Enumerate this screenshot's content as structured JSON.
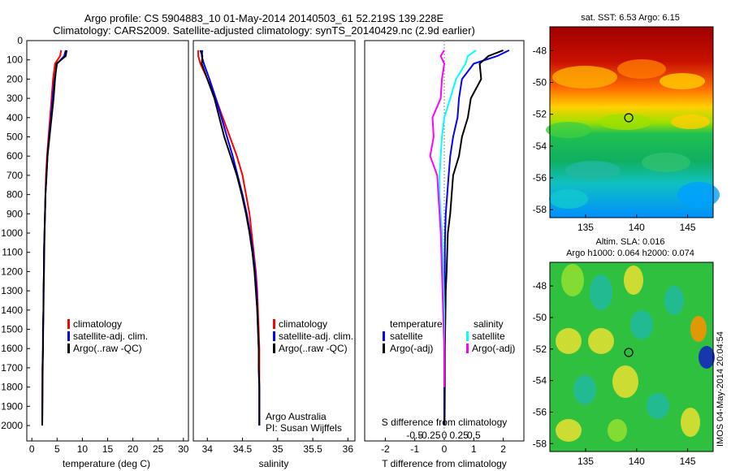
{
  "header": {
    "line1": "Argo profile: CS 5904883_10 01-May-2014 20140503_61 52.219S 139.228E",
    "line2": "Climatology: CARS2009. Satellite-adjusted climatology: synTS_20140429.nc (2.9d earlier)"
  },
  "colors": {
    "climatology": "#ff0000",
    "satellite": "#0000ff",
    "argo": "#000000",
    "salinity_satellite": "#00ffff",
    "salinity_argo": "#ff00ff"
  },
  "chart_data": [
    {
      "type": "line",
      "name": "temperature",
      "xlabel": "temperature (deg C)",
      "ylabel": "",
      "xlim": [
        -1,
        31
      ],
      "ylim": [
        2080,
        0
      ],
      "xticks": [
        0,
        5,
        10,
        15,
        20,
        25,
        30
      ],
      "yticks": [
        0,
        100,
        200,
        300,
        400,
        500,
        600,
        700,
        800,
        900,
        1000,
        1100,
        1200,
        1300,
        1400,
        1500,
        1600,
        1700,
        1800,
        1900,
        2000
      ],
      "legend": [
        "climatology",
        "satellite-adj. clim.",
        "Argo(..raw -QC)"
      ],
      "series": [
        {
          "name": "climatology",
          "color": "#ff0000",
          "x": [
            5.8,
            5.6,
            4.6,
            4.2,
            3.9,
            3.6,
            3.3,
            3.0,
            2.8,
            2.7,
            2.6,
            2.5,
            2.4,
            2.4,
            2.3,
            2.3,
            2.2,
            2.2,
            2.1,
            2.1,
            2.05
          ],
          "y": [
            50,
            80,
            120,
            200,
            300,
            400,
            500,
            600,
            700,
            800,
            900,
            1000,
            1100,
            1200,
            1300,
            1400,
            1500,
            1600,
            1700,
            1800,
            2000
          ]
        },
        {
          "name": "satellite-adj. clim.",
          "color": "#0000ff",
          "x": [
            6.7,
            6.4,
            5.0,
            4.5,
            4.1,
            3.8,
            3.4,
            3.1,
            2.9,
            2.7,
            2.6,
            2.5,
            2.4,
            2.4,
            2.3,
            2.3,
            2.2,
            2.2,
            2.1,
            2.1,
            2.05
          ],
          "y": [
            50,
            80,
            120,
            200,
            300,
            400,
            500,
            600,
            700,
            800,
            900,
            1000,
            1100,
            1200,
            1300,
            1400,
            1500,
            1600,
            1700,
            1800,
            2000
          ]
        },
        {
          "name": "Argo(..raw -QC)",
          "color": "#000000",
          "x": [
            6.9,
            6.7,
            4.9,
            4.6,
            4.3,
            3.9,
            3.5,
            3.1,
            2.9,
            2.7,
            2.6,
            2.5,
            2.45,
            2.4,
            2.35,
            2.3,
            2.25,
            2.2,
            2.15,
            2.1,
            2.05
          ],
          "y": [
            50,
            80,
            120,
            200,
            300,
            400,
            500,
            600,
            700,
            800,
            900,
            1000,
            1100,
            1200,
            1300,
            1400,
            1500,
            1600,
            1700,
            1800,
            2000
          ]
        }
      ]
    },
    {
      "type": "line",
      "name": "salinity",
      "xlabel": "salinity",
      "ylabel": "",
      "xlim": [
        33.8,
        36.1
      ],
      "ylim": [
        2080,
        0
      ],
      "xticks": [
        34,
        34.5,
        35,
        35.5,
        36
      ],
      "legend": [
        "climatology",
        "satellite-adj. clim.",
        "Argo(..raw -QC)"
      ],
      "annotation": [
        "Argo Australia",
        "PI: Susan Wijffels"
      ],
      "series": [
        {
          "name": "climatology",
          "color": "#ff0000",
          "x": [
            33.87,
            33.87,
            33.9,
            34.0,
            34.12,
            34.22,
            34.32,
            34.42,
            34.5,
            34.55,
            34.6,
            34.63,
            34.66,
            34.69,
            34.71,
            34.72,
            34.73,
            34.74,
            34.74,
            34.74,
            34.74
          ],
          "y": [
            50,
            80,
            120,
            200,
            300,
            400,
            500,
            600,
            700,
            800,
            900,
            1000,
            1100,
            1200,
            1300,
            1400,
            1500,
            1600,
            1700,
            1800,
            2000
          ]
        },
        {
          "name": "satellite-adj. clim.",
          "color": "#0000ff",
          "x": [
            33.93,
            33.92,
            33.95,
            34.03,
            34.12,
            34.2,
            34.28,
            34.36,
            34.43,
            34.5,
            34.56,
            34.61,
            34.65,
            34.68,
            34.7,
            34.71,
            34.72,
            34.73,
            34.73,
            34.74,
            34.74
          ],
          "y": [
            50,
            80,
            120,
            200,
            300,
            400,
            500,
            600,
            700,
            800,
            900,
            1000,
            1100,
            1200,
            1300,
            1400,
            1500,
            1600,
            1700,
            1800,
            2000
          ]
        },
        {
          "name": "Argo(..raw -QC)",
          "color": "#000000",
          "x": [
            33.9,
            33.93,
            33.92,
            34.0,
            34.1,
            34.17,
            34.24,
            34.33,
            34.42,
            34.49,
            34.55,
            34.6,
            34.64,
            34.67,
            34.69,
            34.71,
            34.72,
            34.73,
            34.73,
            34.74,
            34.74
          ],
          "y": [
            50,
            80,
            120,
            200,
            300,
            400,
            500,
            600,
            700,
            800,
            900,
            1000,
            1100,
            1200,
            1300,
            1400,
            1500,
            1600,
            1700,
            1800,
            2000
          ]
        }
      ]
    },
    {
      "type": "line",
      "name": "difference from climatology",
      "xlabel": "T difference from climatology",
      "xlabel_top": "S difference from climatology",
      "ylabel": "",
      "xlim": [
        -2.7,
        2.7
      ],
      "ylim": [
        2080,
        0
      ],
      "xticks_T": [
        -2,
        -1,
        0,
        1,
        2
      ],
      "xticks_S": [
        "-0.5",
        "-0.25",
        "0",
        "0.25",
        "0.5"
      ],
      "legend_titles": [
        "temperature",
        "salinity"
      ],
      "legend": [
        "satellite",
        "Argo(-adj)",
        "satellite",
        "Argo(-adj)"
      ],
      "series": [
        {
          "name": "temperature satellite",
          "color": "#0000ff",
          "x": [
            2.2,
            1.8,
            1.0,
            0.6,
            0.5,
            0.45,
            0.3,
            0.2,
            0.15,
            0.1,
            0.05,
            0.03,
            0.02,
            0.02,
            0.01,
            0.01,
            0.0,
            0.0,
            0.0,
            0.0
          ],
          "y": [
            50,
            80,
            120,
            200,
            300,
            400,
            500,
            600,
            700,
            800,
            900,
            1000,
            1100,
            1200,
            1400,
            1600,
            1700,
            1800,
            1900,
            2000
          ]
        },
        {
          "name": "temperature Argo(-adj)",
          "color": "#000000",
          "x": [
            2.0,
            1.5,
            1.2,
            1.25,
            0.9,
            0.8,
            0.6,
            0.5,
            0.3,
            0.25,
            0.2,
            0.12,
            0.1,
            0.08,
            0.05,
            0.04,
            0.03,
            0.02,
            0.02,
            0.01
          ],
          "y": [
            50,
            80,
            120,
            200,
            300,
            400,
            500,
            600,
            700,
            800,
            900,
            1000,
            1100,
            1200,
            1300,
            1400,
            1500,
            1600,
            1800,
            2000
          ]
        },
        {
          "name": "salinity satellite",
          "color": "#00ffff",
          "x": [
            0.27,
            0.2,
            0.18,
            0.1,
            0.05,
            0.0,
            -0.02,
            -0.03,
            -0.04,
            -0.04,
            -0.03,
            -0.02,
            -0.01,
            0.0,
            0.0,
            0.0
          ],
          "y": [
            50,
            80,
            120,
            200,
            300,
            400,
            500,
            600,
            700,
            800,
            900,
            1000,
            1200,
            1400,
            1600,
            1800
          ]
        },
        {
          "name": "salinity Argo(-adj)",
          "color": "#ff00ff",
          "x": [
            0.0,
            -0.03,
            0.0,
            -0.02,
            -0.03,
            -0.1,
            -0.09,
            -0.12,
            -0.06,
            -0.05,
            -0.04,
            -0.03,
            -0.02,
            -0.01,
            0.0,
            0.0
          ],
          "y": [
            50,
            80,
            120,
            200,
            300,
            400,
            500,
            600,
            700,
            800,
            900,
            1000,
            1200,
            1400,
            1600,
            1800
          ]
        }
      ]
    },
    {
      "type": "heatmap",
      "name": "SST map",
      "title": "sat. SST: 6.53  Argo: 6.15",
      "xticks": [
        135,
        140,
        145
      ],
      "yticks": [
        -48,
        -50,
        -52,
        -54,
        -56,
        -58
      ],
      "xlim": [
        131.5,
        147.5
      ],
      "ylim": [
        -58.5,
        -46.5
      ],
      "marker": {
        "lon": 139.228,
        "lat": -52.219
      }
    },
    {
      "type": "heatmap",
      "name": "SLA map",
      "title": "Altim. SLA: 0.016",
      "subtitle": "Argo h1000: 0.064  h2000: 0.074",
      "xticks": [
        135,
        140,
        145
      ],
      "yticks": [
        -48,
        -50,
        -52,
        -54,
        -56,
        -58
      ],
      "xlim": [
        131.5,
        147.5
      ],
      "ylim": [
        -58.5,
        -46.5
      ],
      "marker": {
        "lon": 139.228,
        "lat": -52.219
      }
    }
  ],
  "side_label": "IMOS 04-May-2014 20:04:54"
}
